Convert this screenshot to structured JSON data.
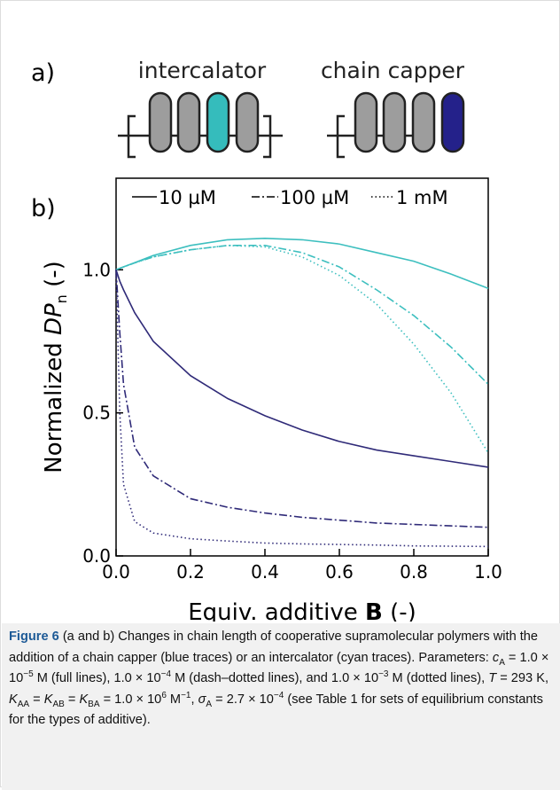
{
  "panel_a": {
    "label": "a)",
    "left_title": "intercalator",
    "right_title": "chain capper"
  },
  "chart_data": {
    "type": "line",
    "panel_label": "b)",
    "x_label": [
      "Equiv. additive ",
      "B",
      " (-)"
    ],
    "y_label": [
      "Normalized ",
      "DP",
      "n",
      " (-)"
    ],
    "x": [
      0,
      0.01,
      0.02,
      0.05,
      0.1,
      0.2,
      0.3,
      0.4,
      0.5,
      0.6,
      0.7,
      0.8,
      0.9,
      1.0
    ],
    "xlim": [
      0,
      1
    ],
    "ylim": [
      0,
      1.32
    ],
    "xticks": [
      {
        "value": 0,
        "label": "0.0"
      },
      0.2,
      0.4,
      0.6,
      0.8,
      {
        "value": 1,
        "label": "1.0"
      }
    ],
    "yticks": [
      {
        "value": 0,
        "label": "0.0"
      },
      0.5,
      {
        "value": 1,
        "label": "1.0"
      }
    ],
    "legend": [
      {
        "label": "10 µM",
        "dash": "solid"
      },
      {
        "label": "100 µM",
        "dash": "dashdot"
      },
      {
        "label": "1 mM",
        "dash": "dotted"
      }
    ],
    "series": [
      {
        "color": "#3dbfbf",
        "dash": "solid",
        "values": [
          1.0,
          1.005,
          1.01,
          1.025,
          1.05,
          1.085,
          1.105,
          1.11,
          1.105,
          1.09,
          1.06,
          1.03,
          0.985,
          0.935
        ]
      },
      {
        "color": "#3dbfbf",
        "dash": "dashdot",
        "values": [
          1.0,
          1.005,
          1.01,
          1.024,
          1.045,
          1.07,
          1.085,
          1.085,
          1.06,
          1.01,
          0.93,
          0.84,
          0.73,
          0.6
        ]
      },
      {
        "color": "#3dbfbf",
        "dash": "dotted",
        "values": [
          1.0,
          1.005,
          1.01,
          1.024,
          1.045,
          1.07,
          1.085,
          1.08,
          1.045,
          0.98,
          0.88,
          0.74,
          0.57,
          0.36
        ]
      },
      {
        "color": "#2f2a78",
        "dash": "solid",
        "values": [
          1.0,
          0.96,
          0.93,
          0.85,
          0.75,
          0.63,
          0.55,
          0.49,
          0.44,
          0.4,
          0.37,
          0.35,
          0.33,
          0.31
        ]
      },
      {
        "color": "#2f2a78",
        "dash": "dashdot",
        "values": [
          1.0,
          0.78,
          0.6,
          0.38,
          0.28,
          0.2,
          0.17,
          0.15,
          0.135,
          0.125,
          0.115,
          0.11,
          0.105,
          0.1
        ]
      },
      {
        "color": "#2f2a78",
        "dash": "dotted",
        "values": [
          1.0,
          0.5,
          0.25,
          0.12,
          0.08,
          0.06,
          0.052,
          0.045,
          0.042,
          0.04,
          0.038,
          0.035,
          0.034,
          0.033
        ]
      }
    ]
  },
  "caption": {
    "parts": [
      "Figure 6",
      " (a and b) Changes in chain length of cooperative supramolecular polymers with the addition of a chain capper (blue traces) or an intercalator (cyan traces). Parameters: ",
      "c",
      "A",
      " = 1.0 × 10",
      "−5",
      " M (full lines), 1.0 × 10",
      "−4",
      " M (dash–dotted lines), and 1.0 × 10",
      "−3",
      " M (dotted lines), ",
      "T",
      " = 293 K, ",
      "K",
      "AA",
      " = ",
      "K",
      "AB",
      " = ",
      "K",
      "BA",
      " = 1.0 × 10",
      "6",
      " M",
      "−1",
      ", ",
      "σ",
      "A",
      " = 2.7 × 10",
      "−4",
      " (see Table 1 for sets of equilibrium constants for the types of additive)."
    ]
  }
}
